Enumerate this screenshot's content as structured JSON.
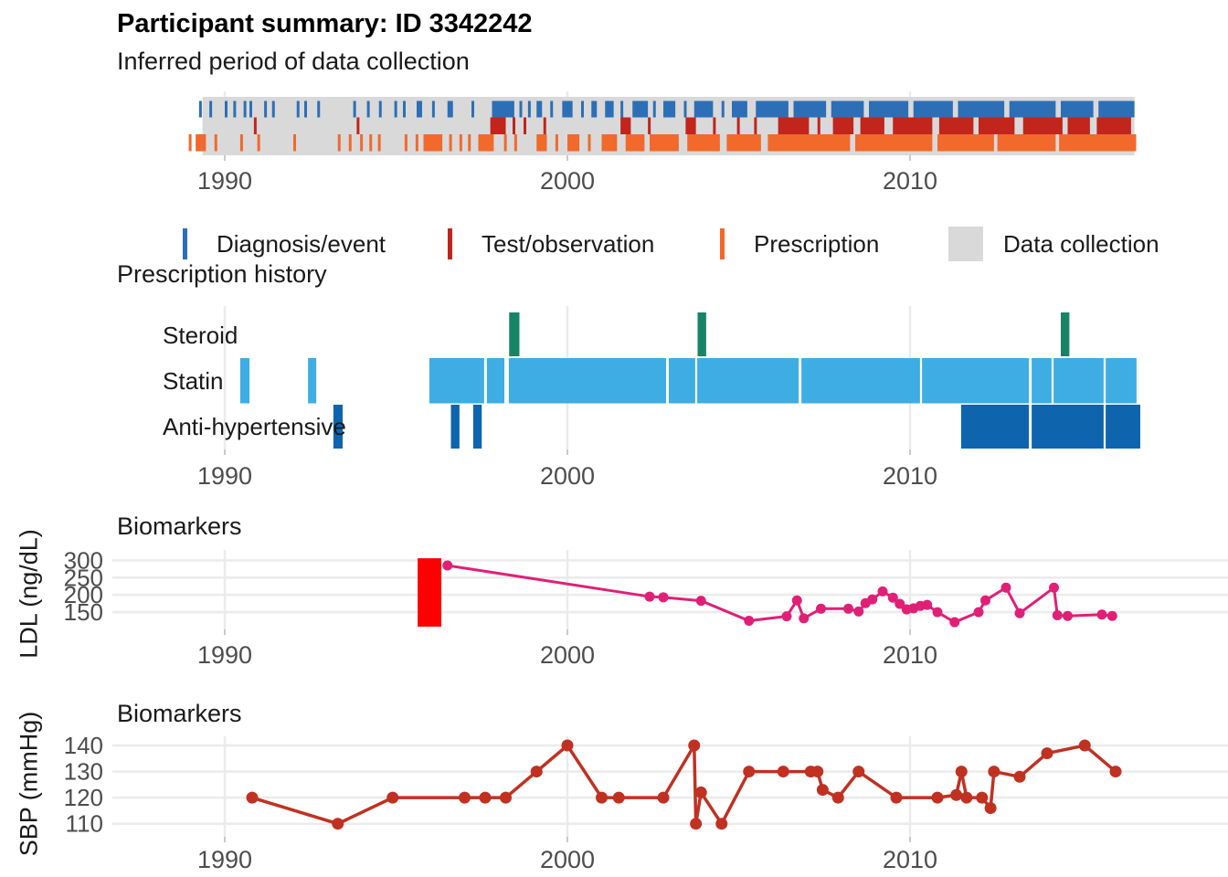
{
  "title": "Participant summary: ID 3342242",
  "sections": {
    "collection": "Inferred period of data collection",
    "prescription": "Prescription history",
    "biomarkers_ldl": "Biomarkers",
    "biomarkers_sbp": "Biomarkers"
  },
  "legend": {
    "items": [
      {
        "label": "Diagnosis/event",
        "color_key": "diagnosis",
        "glyph": "tick"
      },
      {
        "label": "Test/observation",
        "color_key": "test",
        "glyph": "tick"
      },
      {
        "label": "Prescription",
        "color_key": "prescription",
        "glyph": "tick"
      },
      {
        "label": "Data collection",
        "color_key": "collection_bg",
        "glyph": "box"
      }
    ]
  },
  "axis": {
    "x_tick_labels": [
      "1990",
      "2000",
      "2010"
    ]
  },
  "colors": {
    "diagnosis": "#2c6fb7",
    "test": "#c1251c",
    "prescription": "#f2692c",
    "collection_bg": "#d9d9d9",
    "steroid": "#178468",
    "statin": "#3dade4",
    "antihypertensive": "#0e65ae",
    "ldl_line": "#e02077",
    "highlight_red": "#fd0100",
    "sbp_line": "#c03122",
    "gridline": "#ebebeb",
    "axis_text": "#4d4d4d",
    "tick_mark": "#c9c9c9"
  },
  "chart_data": [
    {
      "id": "collection_timeline",
      "type": "heatmap",
      "title": "Inferred period of data collection",
      "x_ticks": [
        1990,
        2000,
        2010
      ],
      "x_domain": [
        1986.7,
        2019.3
      ],
      "collection_period": [
        1989.35,
        2016.55
      ],
      "rows": [
        {
          "name": "Diagnosis/event",
          "color_key": "diagnosis",
          "runs": [
            [
              1989.25,
              1989.33
            ],
            [
              1989.55,
              1989.63
            ],
            [
              1990.0,
              1990.08
            ],
            [
              1990.25,
              1990.33
            ],
            [
              1990.55,
              1990.63
            ],
            [
              1990.72,
              1990.8
            ],
            [
              1991.15,
              1991.23
            ],
            [
              1991.38,
              1991.46
            ],
            [
              1992.1,
              1992.18
            ],
            [
              1992.32,
              1992.4
            ],
            [
              1992.7,
              1992.78
            ],
            [
              1993.75,
              1993.83
            ],
            [
              1994.15,
              1994.23
            ],
            [
              1994.5,
              1994.58
            ],
            [
              1994.95,
              1995.03
            ],
            [
              1995.2,
              1995.28
            ],
            [
              1995.6,
              1995.76
            ],
            [
              1996.05,
              1996.13
            ],
            [
              1996.5,
              1996.66
            ],
            [
              1997.2,
              1997.28
            ],
            [
              1997.8,
              1998.45
            ],
            [
              1998.6,
              1998.68
            ],
            [
              1998.85,
              1998.93
            ],
            [
              1999.1,
              1999.26
            ],
            [
              1999.5,
              1999.58
            ],
            [
              1999.85,
              2000.15
            ],
            [
              2000.4,
              2000.48
            ],
            [
              2000.7,
              2000.86
            ],
            [
              2001.1,
              2001.35
            ],
            [
              2001.55,
              2001.63
            ],
            [
              2001.9,
              2002.35
            ],
            [
              2002.5,
              2002.58
            ],
            [
              2002.8,
              2003.15
            ],
            [
              2003.4,
              2003.48
            ],
            [
              2003.7,
              2004.25
            ],
            [
              2004.5,
              2004.58
            ],
            [
              2004.8,
              2005.25
            ],
            [
              2005.5,
              2006.45
            ],
            [
              2006.6,
              2007.55
            ],
            [
              2007.7,
              2008.65
            ],
            [
              2008.8,
              2009.95
            ],
            [
              2010.1,
              2011.25
            ],
            [
              2011.4,
              2012.75
            ],
            [
              2012.9,
              2014.25
            ],
            [
              2014.4,
              2015.35
            ],
            [
              2015.5,
              2016.55
            ]
          ]
        },
        {
          "name": "Test/observation",
          "color_key": "test",
          "runs": [
            [
              1990.85,
              1990.93
            ],
            [
              1993.85,
              1993.93
            ],
            [
              1997.75,
              1998.2
            ],
            [
              1998.4,
              1998.48
            ],
            [
              1998.72,
              1998.8
            ],
            [
              1999.3,
              1999.38
            ],
            [
              2001.55,
              2001.85
            ],
            [
              2002.35,
              2002.43
            ],
            [
              2003.45,
              2003.75
            ],
            [
              2004.25,
              2004.33
            ],
            [
              2004.95,
              2005.03
            ],
            [
              2005.45,
              2005.53
            ],
            [
              2006.15,
              2007.05
            ],
            [
              2007.3,
              2007.38
            ],
            [
              2007.75,
              2008.35
            ],
            [
              2008.55,
              2009.25
            ],
            [
              2009.5,
              2010.65
            ],
            [
              2010.85,
              2011.85
            ],
            [
              2012.0,
              2013.05
            ],
            [
              2013.3,
              2014.45
            ],
            [
              2014.6,
              2015.25
            ],
            [
              2015.45,
              2016.45
            ]
          ]
        },
        {
          "name": "Prescription",
          "color_key": "prescription",
          "runs": [
            [
              1988.95,
              1989.03
            ],
            [
              1989.15,
              1989.45
            ],
            [
              1989.7,
              1989.78
            ],
            [
              1990.45,
              1990.53
            ],
            [
              1990.95,
              1991.03
            ],
            [
              1992.0,
              1992.08
            ],
            [
              1993.3,
              1993.38
            ],
            [
              1993.62,
              1993.7
            ],
            [
              1993.95,
              1994.03
            ],
            [
              1994.22,
              1994.3
            ],
            [
              1994.47,
              1994.55
            ],
            [
              1995.25,
              1995.33
            ],
            [
              1995.57,
              1995.65
            ],
            [
              1995.8,
              1996.35
            ],
            [
              1996.55,
              1996.63
            ],
            [
              1996.85,
              1996.93
            ],
            [
              1997.1,
              1997.18
            ],
            [
              1997.4,
              1997.85
            ],
            [
              1998.15,
              1998.23
            ],
            [
              1998.45,
              1998.53
            ],
            [
              1999.1,
              1999.4
            ],
            [
              1999.65,
              1999.73
            ],
            [
              2000.0,
              2000.35
            ],
            [
              2000.6,
              2000.68
            ],
            [
              2001.0,
              2001.45
            ],
            [
              2001.7,
              2002.25
            ],
            [
              2002.4,
              2003.25
            ],
            [
              2003.5,
              2004.45
            ],
            [
              2004.65,
              2005.65
            ],
            [
              2005.85,
              2008.25
            ],
            [
              2008.4,
              2010.65
            ],
            [
              2010.8,
              2012.45
            ],
            [
              2012.55,
              2014.25
            ],
            [
              2014.35,
              2016.6
            ]
          ]
        }
      ]
    },
    {
      "id": "prescription_history",
      "type": "bar",
      "title": "Prescription history",
      "x_ticks": [
        1990,
        2000,
        2010
      ],
      "rows": [
        {
          "label": "Steroid",
          "color_key": "steroid",
          "bars": [
            [
              1998.3,
              1998.6
            ],
            [
              2003.8,
              2004.05
            ],
            [
              2014.4,
              2014.65
            ]
          ]
        },
        {
          "label": "Statin",
          "color_key": "statin",
          "bars": [
            [
              1990.45,
              1990.72
            ],
            [
              1992.43,
              1992.67
            ],
            [
              1995.97,
              1997.57
            ],
            [
              1997.65,
              1998.16
            ],
            [
              1998.29,
              2002.88
            ],
            [
              2002.96,
              2003.73
            ],
            [
              2003.79,
              2006.75
            ],
            [
              2006.83,
              2010.29
            ],
            [
              2010.35,
              2013.47
            ],
            [
              2013.55,
              2014.13
            ],
            [
              2014.19,
              2015.65
            ],
            [
              2015.71,
              2016.61
            ]
          ]
        },
        {
          "label": "Anti-hypertensive",
          "color_key": "antihypertensive",
          "bars": [
            [
              1993.17,
              1993.44
            ],
            [
              1996.6,
              1996.85
            ],
            [
              1997.25,
              1997.5
            ],
            [
              2011.49,
              2013.47
            ],
            [
              2013.55,
              2015.65
            ],
            [
              2015.71,
              2016.72
            ]
          ]
        }
      ]
    },
    {
      "id": "ldl",
      "type": "line",
      "title": "Biomarkers",
      "ylabel": "LDL (ng/dL)",
      "yticks": [
        150,
        200,
        250,
        300
      ],
      "ylim": [
        100,
        330
      ],
      "x_ticks": [
        1990,
        2000,
        2010
      ],
      "highlight_rect": {
        "x": [
          1995.63,
          1996.32
        ],
        "y": [
          108,
          306
        ],
        "color_key": "highlight_red"
      },
      "points": [
        [
          1996.5,
          285
        ],
        [
          2002.4,
          195
        ],
        [
          2002.8,
          193
        ],
        [
          2003.9,
          183
        ],
        [
          2005.3,
          125
        ],
        [
          2006.4,
          138
        ],
        [
          2006.7,
          184
        ],
        [
          2006.9,
          132
        ],
        [
          2007.4,
          160
        ],
        [
          2008.2,
          160
        ],
        [
          2008.5,
          152
        ],
        [
          2008.7,
          176
        ],
        [
          2008.9,
          187
        ],
        [
          2009.2,
          210
        ],
        [
          2009.5,
          192
        ],
        [
          2009.7,
          174
        ],
        [
          2009.9,
          158
        ],
        [
          2010.1,
          161
        ],
        [
          2010.3,
          168
        ],
        [
          2010.5,
          171
        ],
        [
          2010.8,
          150
        ],
        [
          2011.3,
          121
        ],
        [
          2012.0,
          150
        ],
        [
          2012.2,
          184
        ],
        [
          2012.8,
          221
        ],
        [
          2013.2,
          147
        ],
        [
          2014.2,
          221
        ],
        [
          2014.3,
          141
        ],
        [
          2014.6,
          139
        ],
        [
          2015.6,
          143
        ],
        [
          2015.9,
          139
        ]
      ]
    },
    {
      "id": "sbp",
      "type": "line",
      "title": "Biomarkers",
      "ylabel": "SBP (mmHg)",
      "yticks": [
        110,
        120,
        130,
        140
      ],
      "ylim": [
        105,
        143.5
      ],
      "x_ticks": [
        1990,
        2000,
        2010
      ],
      "points": [
        [
          1990.8,
          120
        ],
        [
          1993.3,
          110
        ],
        [
          1994.9,
          120
        ],
        [
          1997.0,
          120
        ],
        [
          1997.6,
          120
        ],
        [
          1998.2,
          120
        ],
        [
          1999.1,
          130
        ],
        [
          2000.0,
          140
        ],
        [
          2001.0,
          120
        ],
        [
          2001.5,
          120
        ],
        [
          2002.8,
          120
        ],
        [
          2003.7,
          140
        ],
        [
          2003.75,
          110
        ],
        [
          2003.9,
          122
        ],
        [
          2004.5,
          110
        ],
        [
          2005.3,
          130
        ],
        [
          2006.3,
          130
        ],
        [
          2007.1,
          130
        ],
        [
          2007.3,
          130
        ],
        [
          2007.45,
          123
        ],
        [
          2007.9,
          120
        ],
        [
          2008.5,
          130
        ],
        [
          2009.6,
          120
        ],
        [
          2010.8,
          120
        ],
        [
          2011.35,
          121
        ],
        [
          2011.5,
          130
        ],
        [
          2011.65,
          120
        ],
        [
          2012.1,
          120
        ],
        [
          2012.35,
          116
        ],
        [
          2012.45,
          130
        ],
        [
          2013.2,
          128
        ],
        [
          2014.0,
          137
        ],
        [
          2015.1,
          140
        ],
        [
          2016.0,
          130
        ]
      ]
    }
  ]
}
